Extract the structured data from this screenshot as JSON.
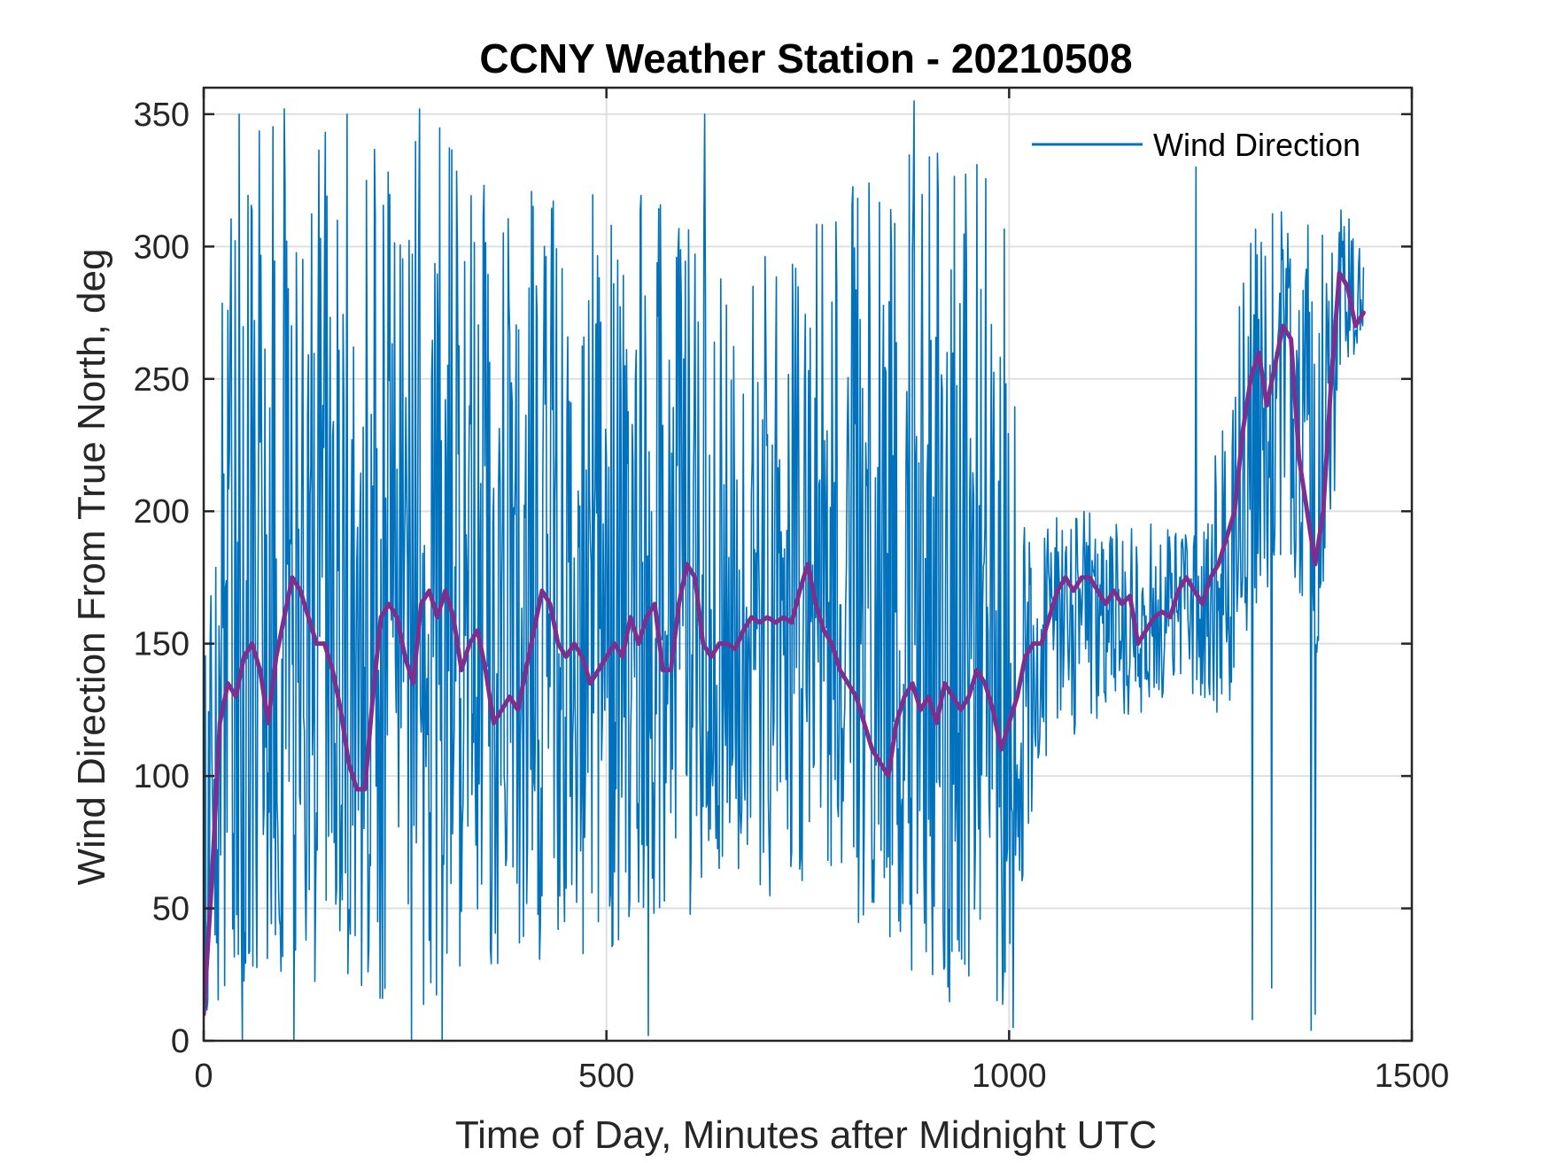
{
  "chart_data": {
    "type": "line",
    "title": "CCNY Weather Station - 20210508",
    "xlabel": "Time of Day, Minutes after Midnight UTC",
    "ylabel": "Wind Direction From True North, deg",
    "xlim": [
      0,
      1500
    ],
    "ylim": [
      0,
      360
    ],
    "x_ticks": [
      0,
      500,
      1000,
      1500
    ],
    "y_ticks": [
      0,
      50,
      100,
      150,
      200,
      250,
      300,
      350
    ],
    "x_tick_labels": [
      "0",
      "500",
      "1000",
      "1500"
    ],
    "y_tick_labels": [
      "0",
      "50",
      "100",
      "150",
      "200",
      "250",
      "300",
      "350"
    ],
    "grid": true,
    "legend": {
      "position": "top-right",
      "entries": [
        "Wind Direction"
      ]
    },
    "series": [
      {
        "name": "Wind Direction",
        "color": "#0072BD",
        "sample_interval_min": 1,
        "x_start": 0,
        "x_end": 1440,
        "envelope_x": [
          0,
          40,
          100,
          180,
          250,
          320,
          400,
          480,
          560,
          640,
          720,
          780,
          860,
          940,
          1000,
          1020,
          1060,
          1120,
          1180,
          1240,
          1270,
          1300,
          1340,
          1380,
          1420,
          1440
        ],
        "envelope_low": [
          10,
          20,
          20,
          20,
          10,
          20,
          30,
          30,
          40,
          50,
          50,
          60,
          20,
          10,
          10,
          70,
          110,
          120,
          125,
          130,
          120,
          160,
          180,
          140,
          250,
          270
        ],
        "envelope_high": [
          200,
          340,
          350,
          340,
          345,
          345,
          330,
          320,
          320,
          300,
          300,
          330,
          345,
          340,
          320,
          190,
          200,
          200,
          195,
          190,
          250,
          310,
          320,
          310,
          325,
          310
        ],
        "spikes": [
          [
            48,
            0
          ],
          [
            112,
            0
          ],
          [
            258,
            0
          ],
          [
            296,
            0
          ],
          [
            552,
            2
          ],
          [
            1005,
            5
          ],
          [
            1302,
            8
          ],
          [
            1375,
            4
          ],
          [
            1326,
            20
          ],
          [
            1380,
            10
          ],
          [
            44,
            350
          ],
          [
            100,
            352
          ],
          [
            178,
            350
          ],
          [
            268,
            352
          ],
          [
            882,
            355
          ],
          [
            622,
            350
          ],
          [
            1232,
            330
          ]
        ]
      },
      {
        "color": "#7E2F8E",
        "x": [
          0,
          10,
          20,
          30,
          40,
          50,
          60,
          70,
          80,
          90,
          100,
          110,
          120,
          130,
          140,
          150,
          160,
          170,
          180,
          190,
          200,
          210,
          220,
          230,
          240,
          250,
          260,
          270,
          280,
          290,
          300,
          310,
          320,
          330,
          340,
          350,
          360,
          370,
          380,
          390,
          400,
          410,
          420,
          430,
          440,
          450,
          460,
          470,
          480,
          490,
          500,
          510,
          520,
          530,
          540,
          550,
          560,
          570,
          580,
          590,
          600,
          610,
          620,
          630,
          640,
          650,
          660,
          670,
          680,
          690,
          700,
          710,
          720,
          730,
          740,
          750,
          760,
          770,
          780,
          790,
          800,
          810,
          820,
          830,
          840,
          850,
          860,
          870,
          880,
          890,
          900,
          910,
          920,
          930,
          940,
          950,
          960,
          970,
          980,
          990,
          1000,
          1010,
          1020,
          1030,
          1040,
          1050,
          1060,
          1070,
          1080,
          1090,
          1100,
          1110,
          1120,
          1130,
          1140,
          1150,
          1160,
          1170,
          1180,
          1190,
          1200,
          1210,
          1220,
          1230,
          1240,
          1250,
          1260,
          1270,
          1280,
          1290,
          1300,
          1310,
          1320,
          1330,
          1340,
          1350,
          1360,
          1370,
          1380,
          1390,
          1400,
          1410,
          1420,
          1430,
          1440
        ],
        "y": [
          10,
          60,
          120,
          135,
          130,
          145,
          150,
          140,
          120,
          145,
          160,
          175,
          170,
          160,
          150,
          150,
          140,
          125,
          105,
          95,
          95,
          130,
          160,
          165,
          160,
          145,
          135,
          165,
          170,
          160,
          170,
          160,
          140,
          150,
          155,
          140,
          120,
          125,
          130,
          125,
          140,
          155,
          170,
          165,
          150,
          145,
          150,
          145,
          135,
          140,
          145,
          150,
          145,
          160,
          150,
          160,
          165,
          140,
          140,
          165,
          180,
          175,
          150,
          145,
          150,
          150,
          148,
          155,
          160,
          158,
          160,
          158,
          160,
          158,
          170,
          180,
          165,
          155,
          150,
          140,
          135,
          130,
          120,
          110,
          105,
          100,
          120,
          130,
          135,
          125,
          130,
          120,
          135,
          130,
          125,
          130,
          140,
          135,
          125,
          110,
          120,
          130,
          145,
          150,
          150,
          160,
          170,
          175,
          170,
          175,
          175,
          170,
          165,
          170,
          165,
          168,
          150,
          155,
          160,
          162,
          160,
          170,
          175,
          170,
          165,
          175,
          180,
          190,
          200,
          230,
          250,
          260,
          240,
          255,
          270,
          265,
          220,
          200,
          180,
          200,
          250,
          290,
          285,
          270,
          275
        ]
      }
    ]
  }
}
